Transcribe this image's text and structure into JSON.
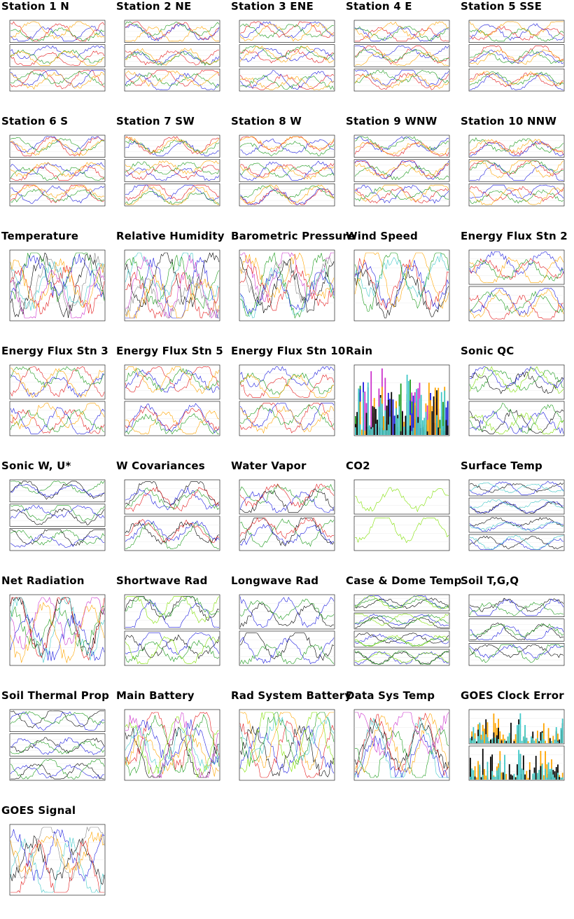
{
  "page_title": "",
  "colors": {
    "red": "#e41a1c",
    "green": "#1a9a1a",
    "blue": "#1c1cdf",
    "orange": "#ffa500",
    "black": "#000000",
    "cyan": "#40c8c8",
    "lime": "#7fe000",
    "magenta": "#cc33cc",
    "gray": "#888888"
  },
  "chart_data": [
    {
      "title": "Station 1 N",
      "type": "line",
      "panels": 3,
      "series_colors": [
        "red",
        "blue",
        "green",
        "orange"
      ]
    },
    {
      "title": "Station 2 NE",
      "type": "line",
      "panels": 3,
      "series_colors": [
        "red",
        "blue",
        "green",
        "orange"
      ]
    },
    {
      "title": "Station 3 ENE",
      "type": "line",
      "panels": 3,
      "series_colors": [
        "red",
        "blue",
        "green",
        "orange"
      ]
    },
    {
      "title": "Station 4 E",
      "type": "line",
      "panels": 3,
      "series_colors": [
        "red",
        "blue",
        "green",
        "orange"
      ]
    },
    {
      "title": "Station 5 SSE",
      "type": "line",
      "panels": 3,
      "series_colors": [
        "red",
        "blue",
        "green",
        "orange"
      ]
    },
    {
      "title": "Station 6 S",
      "type": "line",
      "panels": 3,
      "series_colors": [
        "red",
        "blue",
        "green",
        "orange"
      ]
    },
    {
      "title": "Station 7 SW",
      "type": "line",
      "panels": 3,
      "series_colors": [
        "red",
        "blue",
        "green",
        "orange"
      ]
    },
    {
      "title": "Station 8 W",
      "type": "line",
      "panels": 3,
      "series_colors": [
        "red",
        "blue",
        "green",
        "orange"
      ]
    },
    {
      "title": "Station 9 WNW",
      "type": "line",
      "panels": 3,
      "series_colors": [
        "red",
        "blue",
        "green",
        "orange"
      ]
    },
    {
      "title": "Station 10 NNW",
      "type": "line",
      "panels": 3,
      "series_colors": [
        "red",
        "blue",
        "green",
        "orange"
      ]
    },
    {
      "title": "Temperature",
      "type": "line",
      "panels": 1,
      "series_colors": [
        "black",
        "cyan",
        "red",
        "blue",
        "green",
        "orange",
        "magenta",
        "gray"
      ]
    },
    {
      "title": "Relative Humidity",
      "type": "line",
      "panels": 1,
      "series_colors": [
        "black",
        "cyan",
        "red",
        "blue",
        "green",
        "orange",
        "magenta",
        "gray"
      ]
    },
    {
      "title": "Barometric Pressure",
      "type": "line",
      "panels": 1,
      "series_colors": [
        "magenta",
        "cyan",
        "orange",
        "green",
        "blue",
        "red",
        "gray",
        "black"
      ]
    },
    {
      "title": "Wind Speed",
      "type": "line",
      "panels": 1,
      "series_colors": [
        "black",
        "red",
        "blue",
        "green",
        "orange",
        "cyan"
      ]
    },
    {
      "title": "Energy Flux Stn 2",
      "type": "line",
      "panels": 2,
      "series_colors": [
        "red",
        "blue",
        "green",
        "orange"
      ]
    },
    {
      "title": "Energy Flux Stn 3",
      "type": "line",
      "panels": 2,
      "series_colors": [
        "red",
        "blue",
        "green",
        "orange"
      ]
    },
    {
      "title": "Energy Flux Stn 5",
      "type": "line",
      "panels": 2,
      "series_colors": [
        "red",
        "blue",
        "green",
        "orange"
      ]
    },
    {
      "title": "Energy Flux Stn 10",
      "type": "line",
      "panels": 2,
      "series_colors": [
        "red",
        "blue",
        "green",
        "orange"
      ]
    },
    {
      "title": "Rain",
      "type": "bar",
      "panels": 1,
      "series_colors": [
        "magenta",
        "green",
        "blue",
        "orange",
        "black",
        "cyan"
      ]
    },
    {
      "title": "Sonic QC",
      "type": "line",
      "panels": 2,
      "series_colors": [
        "black",
        "green",
        "blue",
        "lime"
      ]
    },
    {
      "title": "Sonic W, U*",
      "type": "line",
      "panels": 3,
      "series_colors": [
        "black",
        "green",
        "blue"
      ]
    },
    {
      "title": "W Covariances",
      "type": "line",
      "panels": 2,
      "series_colors": [
        "black",
        "green",
        "blue",
        "red"
      ]
    },
    {
      "title": "Water Vapor",
      "type": "line",
      "panels": 2,
      "series_colors": [
        "black",
        "green",
        "blue",
        "red"
      ]
    },
    {
      "title": "CO2",
      "type": "line",
      "panels": 2,
      "series_colors": [
        "lime"
      ]
    },
    {
      "title": "Surface Temp",
      "type": "line",
      "panels": 4,
      "series_colors": [
        "black",
        "blue",
        "cyan"
      ]
    },
    {
      "title": "Net Radiation",
      "type": "line",
      "panels": 1,
      "series_colors": [
        "black",
        "red",
        "blue",
        "green",
        "orange",
        "magenta",
        "cyan"
      ]
    },
    {
      "title": "Shortwave Rad",
      "type": "line",
      "panels": 2,
      "series_colors": [
        "black",
        "blue",
        "green",
        "lime"
      ]
    },
    {
      "title": "Longwave Rad",
      "type": "line",
      "panels": 2,
      "series_colors": [
        "black",
        "blue",
        "green"
      ]
    },
    {
      "title": "Case & Dome Temp",
      "type": "line",
      "panels": 4,
      "series_colors": [
        "black",
        "blue",
        "green",
        "lime"
      ]
    },
    {
      "title": "Soil T,G,Q",
      "type": "line",
      "panels": 3,
      "series_colors": [
        "black",
        "blue",
        "green"
      ]
    },
    {
      "title": "Soil Thermal Prop",
      "type": "line",
      "panels": 3,
      "series_colors": [
        "black",
        "blue",
        "green"
      ]
    },
    {
      "title": "Main Battery",
      "type": "line",
      "panels": 1,
      "series_colors": [
        "black",
        "red",
        "blue",
        "green",
        "orange",
        "cyan",
        "lime",
        "magenta"
      ]
    },
    {
      "title": "Rad System Battery",
      "type": "line",
      "panels": 1,
      "series_colors": [
        "black",
        "red",
        "blue",
        "green",
        "orange",
        "cyan",
        "lime"
      ]
    },
    {
      "title": "Data Sys Temp",
      "type": "line",
      "panels": 1,
      "series_colors": [
        "black",
        "red",
        "blue",
        "green",
        "orange",
        "cyan",
        "magenta"
      ]
    },
    {
      "title": "GOES Clock Error",
      "type": "bar",
      "panels": 2,
      "series_colors": [
        "orange",
        "black",
        "cyan"
      ]
    },
    {
      "title": "GOES Signal",
      "type": "line",
      "panels": 1,
      "series_colors": [
        "gray",
        "cyan",
        "black",
        "blue",
        "orange",
        "red"
      ]
    }
  ]
}
